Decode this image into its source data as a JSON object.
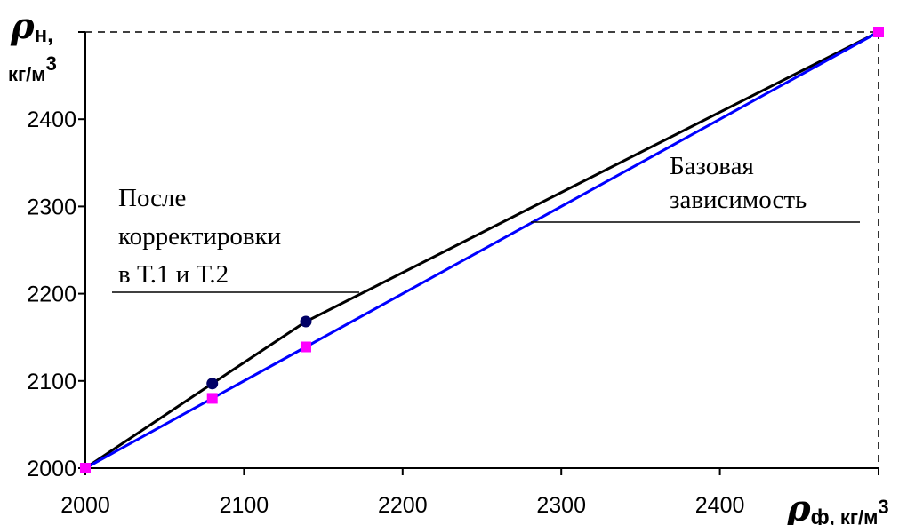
{
  "chart_data": {
    "type": "line",
    "title": "",
    "xlabel": {
      "symbol": "ρ",
      "sub": "ф",
      "unit": ", кг/м",
      "sup": "3"
    },
    "ylabel": {
      "symbol": "ρ",
      "sub": "н",
      "line1_end": ",",
      "unit": "кг/м",
      "sup": "3"
    },
    "xlim": [
      2000,
      2500
    ],
    "ylim": [
      2000,
      2500
    ],
    "x_ticks": [
      2000,
      2100,
      2200,
      2300,
      2400
    ],
    "y_ticks": [
      2000,
      2100,
      2200,
      2300,
      2400
    ],
    "series": [
      {
        "name": "Базовая зависимость",
        "color": "#0000ff",
        "marker_color": "#ff00ff",
        "marker": "square",
        "x": [
          2000,
          2080,
          2139,
          2500
        ],
        "y": [
          2000,
          2080,
          2139,
          2500
        ]
      },
      {
        "name": "После корректировки в Т.1 и Т.2",
        "color": "#000000",
        "marker_color": "#000066",
        "marker": "circle",
        "x": [
          2000,
          2080,
          2139,
          2500
        ],
        "y": [
          2000,
          2097,
          2168,
          2500
        ]
      }
    ],
    "annotations": [
      {
        "lines": [
          "Базовая",
          "зависимость"
        ]
      },
      {
        "lines": [
          "После",
          "корректировки",
          "в Т.1 и Т.2"
        ]
      }
    ],
    "grid": false,
    "frame": "dashed top and right edges"
  }
}
